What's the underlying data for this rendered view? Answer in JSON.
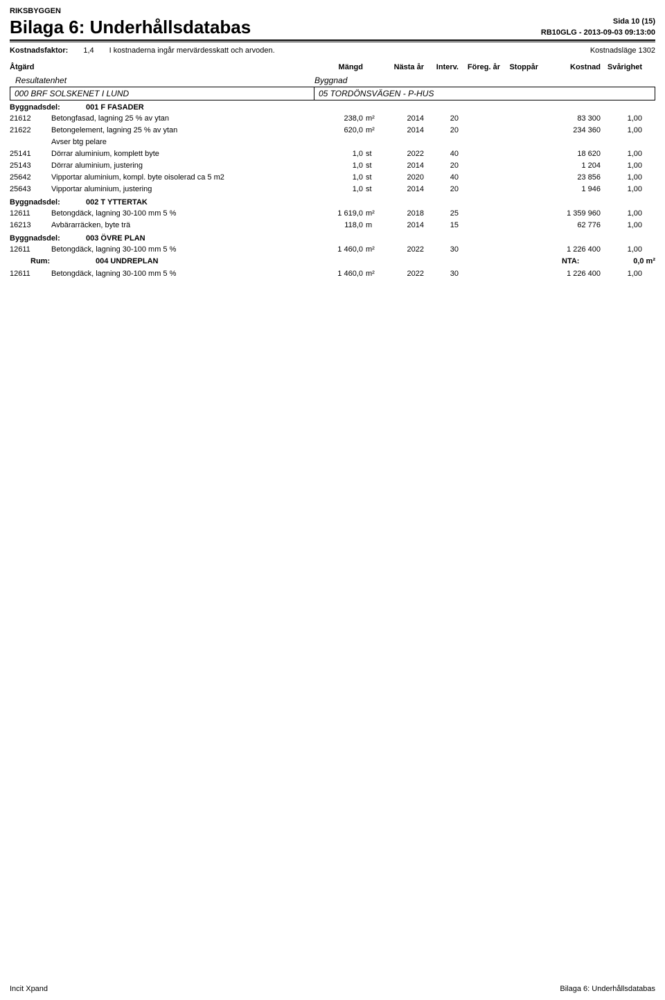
{
  "header": {
    "org": "RIKSBYGGEN",
    "title": "Bilaga 6: Underhållsdatabas",
    "page_label": "Sida 10 (15)",
    "ref": "RB10GLG - 2013-09-03 09:13:00"
  },
  "meta": {
    "kostnadsfaktor_label": "Kostnadsfaktor:",
    "kostnadsfaktor_value": "1,4",
    "note": "I kostnaderna ingår mervärdesskatt och arvoden.",
    "kostnadslage": "Kostnadsläge 1302"
  },
  "columns": {
    "atgard": "Åtgärd",
    "mangd": "Mängd",
    "nasta": "Nästa år",
    "interv": "Interv.",
    "foreg": "Föreg. år",
    "stoppar": "Stoppår",
    "kostnad": "Kostnad",
    "svarighet": "Svårighet"
  },
  "subheader": {
    "resultatenhet_label": "Resultatenhet",
    "byggnad_label": "Byggnad",
    "re_value": "000 BRF SOLSKENET I LUND",
    "bg_value": "05 TORDÖNSVÄGEN - P-HUS"
  },
  "sections": [
    {
      "label": "Byggnadsdel:",
      "value": "001 F FASADER",
      "rows": [
        {
          "code": "21612",
          "desc": "Betongfasad, lagning 25 % av ytan",
          "qty": "238,0",
          "unit": "m²",
          "next": "2014",
          "int": "20",
          "prev": "",
          "stop": "",
          "cost": "83 300",
          "diff": "1,00"
        },
        {
          "code": "21622",
          "desc": "Betongelement, lagning 25 % av ytan",
          "qty": "620,0",
          "unit": "m²",
          "next": "2014",
          "int": "20",
          "prev": "",
          "stop": "",
          "cost": "234 360",
          "diff": "1,00"
        },
        {
          "code": "",
          "desc": "Avser btg pelare",
          "qty": "",
          "unit": "",
          "next": "",
          "int": "",
          "prev": "",
          "stop": "",
          "cost": "",
          "diff": "",
          "note": true
        },
        {
          "code": "25141",
          "desc": "Dörrar aluminium, komplett byte",
          "qty": "1,0",
          "unit": "st",
          "next": "2022",
          "int": "40",
          "prev": "",
          "stop": "",
          "cost": "18 620",
          "diff": "1,00"
        },
        {
          "code": "25143",
          "desc": "Dörrar aluminium, justering",
          "qty": "1,0",
          "unit": "st",
          "next": "2014",
          "int": "20",
          "prev": "",
          "stop": "",
          "cost": "1 204",
          "diff": "1,00"
        },
        {
          "code": "25642",
          "desc": "Vipportar aluminium, kompl. byte oisolerad ca 5 m2",
          "qty": "1,0",
          "unit": "st",
          "next": "2020",
          "int": "40",
          "prev": "",
          "stop": "",
          "cost": "23 856",
          "diff": "1,00"
        },
        {
          "code": "25643",
          "desc": "Vipportar aluminium, justering",
          "qty": "1,0",
          "unit": "st",
          "next": "2014",
          "int": "20",
          "prev": "",
          "stop": "",
          "cost": "1 946",
          "diff": "1,00"
        }
      ]
    },
    {
      "label": "Byggnadsdel:",
      "value": "002 T YTTERTAK",
      "rows": [
        {
          "code": "12611",
          "desc": "Betongdäck, lagning 30-100 mm 5 %",
          "qty": "1 619,0",
          "unit": "m²",
          "next": "2018",
          "int": "25",
          "prev": "",
          "stop": "",
          "cost": "1 359 960",
          "diff": "1,00"
        },
        {
          "code": "16213",
          "desc": "Avbärarräcken, byte trä",
          "qty": "118,0",
          "unit": "m",
          "next": "2014",
          "int": "15",
          "prev": "",
          "stop": "",
          "cost": "62 776",
          "diff": "1,00"
        }
      ]
    },
    {
      "label": "Byggnadsdel:",
      "value": "003 ÖVRE PLAN",
      "rows": [
        {
          "code": "12611",
          "desc": "Betongdäck, lagning 30-100 mm 5 %",
          "qty": "1 460,0",
          "unit": "m²",
          "next": "2022",
          "int": "30",
          "prev": "",
          "stop": "",
          "cost": "1 226 400",
          "diff": "1,00"
        }
      ],
      "rum": {
        "label": "Rum:",
        "value": "004 UNDREPLAN",
        "nta_label": "NTA:",
        "nta_value": "0,0 m²"
      },
      "rows_after_rum": [
        {
          "code": "12611",
          "desc": "Betongdäck, lagning 30-100 mm 5 %",
          "qty": "1 460,0",
          "unit": "m²",
          "next": "2022",
          "int": "30",
          "prev": "",
          "stop": "",
          "cost": "1 226 400",
          "diff": "1,00"
        }
      ]
    }
  ],
  "footer": {
    "left": "Incit Xpand",
    "right": "Bilaga 6: Underhållsdatabas"
  }
}
